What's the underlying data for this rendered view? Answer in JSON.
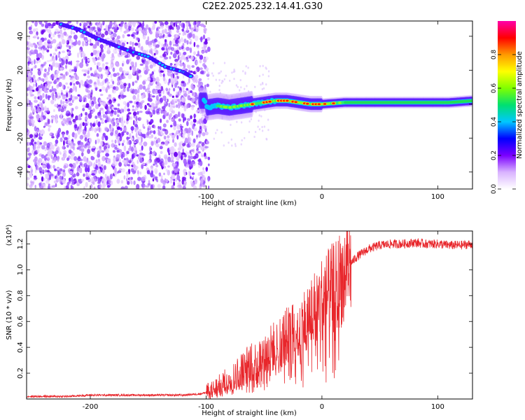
{
  "title": "C2E2.2025.232.14.41.G30",
  "chart_data": [
    {
      "type": "heatmap",
      "xlabel": "Height of straight line (km)",
      "ylabel": "Frequency (Hz)",
      "xlim": [
        -255,
        130
      ],
      "ylim": [
        -50,
        49
      ],
      "xticks": [
        -200,
        -100,
        0,
        100
      ],
      "yticks": [
        -40,
        -20,
        0,
        20,
        40
      ],
      "colorbar": {
        "label": "Normalized spectral amplitude",
        "range": [
          0,
          1
        ],
        "ticks": [
          "0.0",
          "0.2",
          "0.4",
          "0.6",
          "0.8"
        ],
        "colors": [
          "#ffffff",
          "#d9b3ff",
          "#7a00ff",
          "#0000ff",
          "#00c8ff",
          "#00e070",
          "#80ff00",
          "#ffff00",
          "#ff9900",
          "#ff0000",
          "#ff00aa"
        ]
      },
      "features": {
        "noise_region_x": [
          -255,
          -100
        ],
        "chirp_trace": [
          [
            -225,
            47
          ],
          [
            -210,
            44
          ],
          [
            -195,
            39
          ],
          [
            -180,
            35
          ],
          [
            -165,
            31
          ],
          [
            -150,
            28
          ],
          [
            -135,
            22
          ],
          [
            -120,
            19
          ],
          [
            -112,
            16
          ]
        ],
        "carrier_trace": [
          [
            -100,
            -2
          ],
          [
            -90,
            -1
          ],
          [
            -80,
            -2
          ],
          [
            -70,
            -1
          ],
          [
            -60,
            0
          ],
          [
            -50,
            1
          ],
          [
            -40,
            2
          ],
          [
            -30,
            2
          ],
          [
            -20,
            1
          ],
          [
            -10,
            0
          ],
          [
            0,
            0
          ],
          [
            20,
            1
          ],
          [
            50,
            1
          ],
          [
            80,
            1
          ],
          [
            110,
            1
          ],
          [
            130,
            2
          ]
        ]
      }
    },
    {
      "type": "line",
      "xlabel": "Height of straight line (km)",
      "ylabel": "SNR (10 * v/v)",
      "y_multiplier": "(x10⁴)",
      "xlim": [
        -255,
        130
      ],
      "ylim": [
        0,
        1.3
      ],
      "xticks": [
        -200,
        -100,
        0,
        100
      ],
      "yticks": [
        "0.2",
        "0.4",
        "0.6",
        "0.8",
        "1.0",
        "1.2"
      ],
      "color": "#e8262b",
      "series": [
        {
          "x": [
            -255,
            -240,
            -220,
            -200,
            -180,
            -160,
            -140,
            -120,
            -105,
            -95,
            -85,
            -75,
            -65,
            -55,
            -45,
            -35,
            -25,
            -15,
            -5,
            0,
            5,
            10,
            15,
            20,
            25,
            30,
            35,
            40,
            50,
            60,
            70,
            80,
            90,
            100,
            110,
            120,
            130
          ],
          "y": [
            0.02,
            0.02,
            0.02,
            0.03,
            0.03,
            0.03,
            0.03,
            0.03,
            0.04,
            0.06,
            0.12,
            0.18,
            0.26,
            0.3,
            0.38,
            0.45,
            0.52,
            0.6,
            0.72,
            0.78,
            0.82,
            0.86,
            0.92,
            0.98,
            1.05,
            1.1,
            1.13,
            1.16,
            1.19,
            1.2,
            1.2,
            1.21,
            1.2,
            1.2,
            1.19,
            1.19,
            1.2
          ]
        }
      ]
    }
  ]
}
